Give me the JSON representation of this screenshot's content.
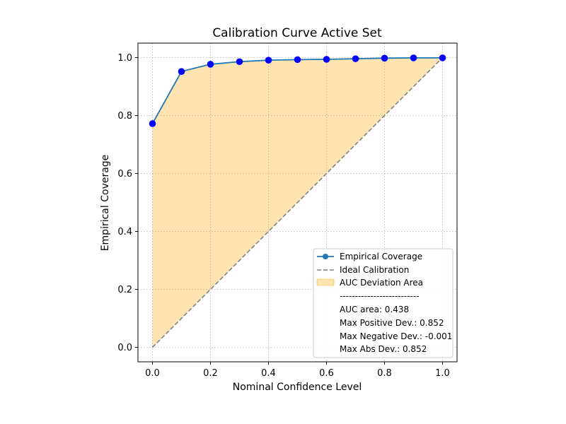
{
  "chart_data": {
    "type": "line",
    "title": "Calibration Curve Active Set",
    "xlabel": "Nominal Confidence Level",
    "ylabel": "Empirical Coverage",
    "xlim": [
      -0.05,
      1.05
    ],
    "ylim": [
      -0.05,
      1.05
    ],
    "xticks": [
      "0.0",
      "0.2",
      "0.4",
      "0.6",
      "0.8",
      "1.0"
    ],
    "yticks": [
      "0.0",
      "0.2",
      "0.4",
      "0.6",
      "0.8",
      "1.0"
    ],
    "grid": true,
    "legend_position": "lower-right",
    "series": [
      {
        "name": "Empirical Coverage",
        "color": "#1f77b4",
        "marker_color": "#0000ff",
        "x": [
          0.0,
          0.1,
          0.2,
          0.3,
          0.4,
          0.5,
          0.6,
          0.7,
          0.8,
          0.9,
          1.0
        ],
        "y": [
          0.772,
          0.952,
          0.977,
          0.986,
          0.991,
          0.993,
          0.994,
          0.996,
          0.998,
          0.999,
          0.999
        ]
      },
      {
        "name": "Ideal Calibration",
        "color": "#808080",
        "x": [
          0.0,
          1.0
        ],
        "y": [
          0.0,
          1.0
        ]
      }
    ],
    "fill": {
      "name": "AUC Deviation Area",
      "color": "#ffa500"
    },
    "legend_notes": [
      "--------------------------",
      "AUC area: 0.438",
      "Max Positive Dev.: 0.852",
      "Max Negative Dev.: -0.001",
      "Max Abs Dev.: 0.852"
    ]
  }
}
